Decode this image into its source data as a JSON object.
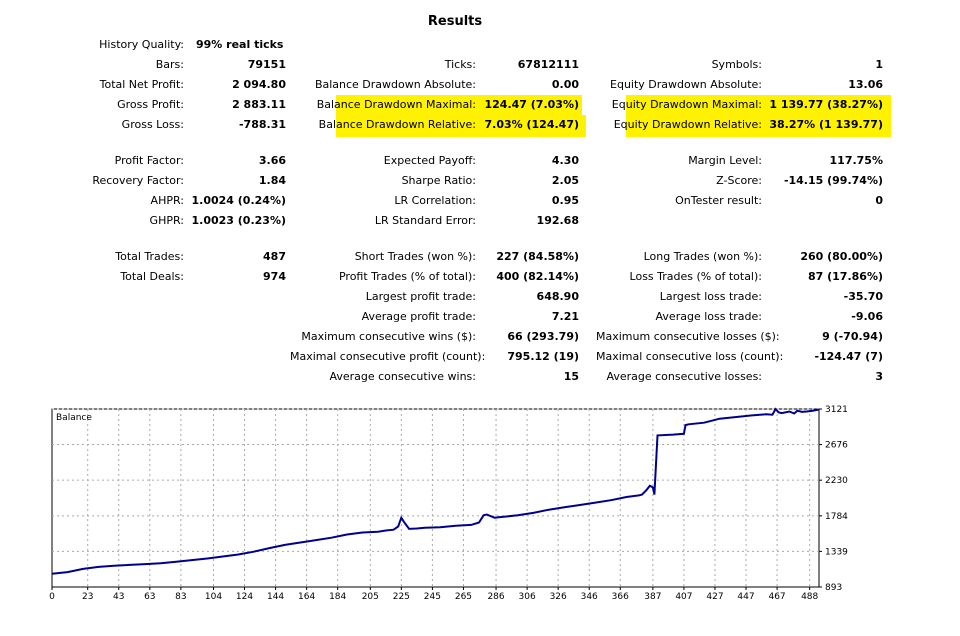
{
  "title": "Results",
  "col1": [
    {
      "label": "History Quality:",
      "value": "99% real ticks"
    },
    {
      "label": "Bars:",
      "value": "79151"
    },
    {
      "label": "Total Net Profit:",
      "value": "2 094.80"
    },
    {
      "label": "Gross Profit:",
      "value": "2 883.11"
    },
    {
      "label": "Gross Loss:",
      "value": "-788.31"
    },
    {
      "label": "Profit Factor:",
      "value": "3.66"
    },
    {
      "label": "Recovery Factor:",
      "value": "1.84"
    },
    {
      "label": "AHPR:",
      "value": "1.0024 (0.24%)"
    },
    {
      "label": "GHPR:",
      "value": "1.0023 (0.23%)"
    },
    {
      "label": "Total Trades:",
      "value": "487"
    },
    {
      "label": "Total Deals:",
      "value": "974"
    }
  ],
  "col2": [
    {
      "label": "Ticks:",
      "value": "67812111"
    },
    {
      "label": "Balance Drawdown Absolute:",
      "value": "0.00"
    },
    {
      "label": "Balance Drawdown Maximal:",
      "value": "124.47 (7.03%)"
    },
    {
      "label": "Balance Drawdown Relative:",
      "value": "7.03% (124.47)"
    },
    {
      "label": "Expected Payoff:",
      "value": "4.30"
    },
    {
      "label": "Sharpe Ratio:",
      "value": "2.05"
    },
    {
      "label": "LR Correlation:",
      "value": "0.95"
    },
    {
      "label": "LR Standard Error:",
      "value": "192.68"
    },
    {
      "label": "Short Trades (won %):",
      "value": "227 (84.58%)"
    },
    {
      "label": "Profit Trades (% of total):",
      "value": "400 (82.14%)"
    },
    {
      "label": "Largest profit trade:",
      "value": "648.90"
    },
    {
      "label": "Average profit trade:",
      "value": "7.21"
    },
    {
      "label": "Maximum consecutive wins ($):",
      "value": "66 (293.79)"
    },
    {
      "label": "Maximal consecutive profit (count):",
      "value": "795.12 (19)"
    },
    {
      "label": "Average consecutive wins:",
      "value": "15"
    }
  ],
  "col3": [
    {
      "label": "Symbols:",
      "value": "1"
    },
    {
      "label": "Equity Drawdown Absolute:",
      "value": "13.06"
    },
    {
      "label": "Equity Drawdown Maximal:",
      "value": "1 139.77 (38.27%)"
    },
    {
      "label": "Equity Drawdown Relative:",
      "value": "38.27% (1 139.77)"
    },
    {
      "label": "Margin Level:",
      "value": "117.75%"
    },
    {
      "label": "Z-Score:",
      "value": "-14.15 (99.74%)"
    },
    {
      "label": "OnTester result:",
      "value": "0"
    },
    {
      "label": "Long Trades (won %):",
      "value": "260 (80.00%)"
    },
    {
      "label": "Loss Trades (% of total):",
      "value": "87 (17.86%)"
    },
    {
      "label": "Largest loss trade:",
      "value": "-35.70"
    },
    {
      "label": "Average loss trade:",
      "value": "-9.06"
    },
    {
      "label": "Maximum consecutive losses ($):",
      "value": "9 (-70.94)"
    },
    {
      "label": "Maximal consecutive loss (count):",
      "value": "-124.47 (7)"
    },
    {
      "label": "Average consecutive losses:",
      "value": "3"
    }
  ],
  "highlight_color": "#fff200",
  "chart_data": {
    "type": "line",
    "title": "Balance",
    "xticks": [
      "0",
      "23",
      "43",
      "63",
      "83",
      "104",
      "124",
      "144",
      "164",
      "184",
      "205",
      "225",
      "245",
      "265",
      "286",
      "306",
      "326",
      "346",
      "366",
      "387",
      "407",
      "427",
      "447",
      "467",
      "488"
    ],
    "yticks": [
      "3121",
      "2676",
      "2230",
      "1784",
      "1339",
      "893"
    ],
    "xlim": [
      0,
      494
    ],
    "ylim": [
      893,
      3121
    ],
    "grid": true,
    "line_color": "#00008b",
    "series": [
      {
        "x": [
          0,
          10,
          20,
          30,
          40,
          50,
          60,
          70,
          80,
          90,
          100,
          110,
          120,
          130,
          140,
          150,
          160,
          170,
          180,
          190,
          200,
          205,
          210,
          215,
          220,
          223,
          225,
          227,
          230,
          235,
          240,
          250,
          260,
          270,
          275,
          278,
          280,
          285,
          290,
          300,
          310,
          320,
          330,
          340,
          350,
          360,
          370,
          378,
          380,
          383,
          385,
          387,
          388,
          390,
          400,
          407,
          408,
          410,
          420,
          430,
          440,
          450,
          460,
          464,
          466,
          468,
          470,
          475,
          478,
          480,
          483,
          486,
          490,
          494
        ],
        "y": [
          1060,
          1080,
          1120,
          1145,
          1160,
          1170,
          1180,
          1190,
          1210,
          1230,
          1250,
          1275,
          1300,
          1335,
          1380,
          1420,
          1450,
          1480,
          1510,
          1550,
          1575,
          1580,
          1585,
          1600,
          1610,
          1650,
          1760,
          1700,
          1620,
          1625,
          1635,
          1640,
          1660,
          1670,
          1700,
          1790,
          1800,
          1760,
          1770,
          1790,
          1820,
          1860,
          1890,
          1920,
          1950,
          1980,
          2020,
          2040,
          2050,
          2110,
          2160,
          2140,
          2050,
          2790,
          2800,
          2810,
          2920,
          2930,
          2950,
          3000,
          3020,
          3040,
          3055,
          3050,
          3120,
          3080,
          3070,
          3090,
          3065,
          3100,
          3085,
          3090,
          3100,
          3115
        ]
      }
    ]
  }
}
